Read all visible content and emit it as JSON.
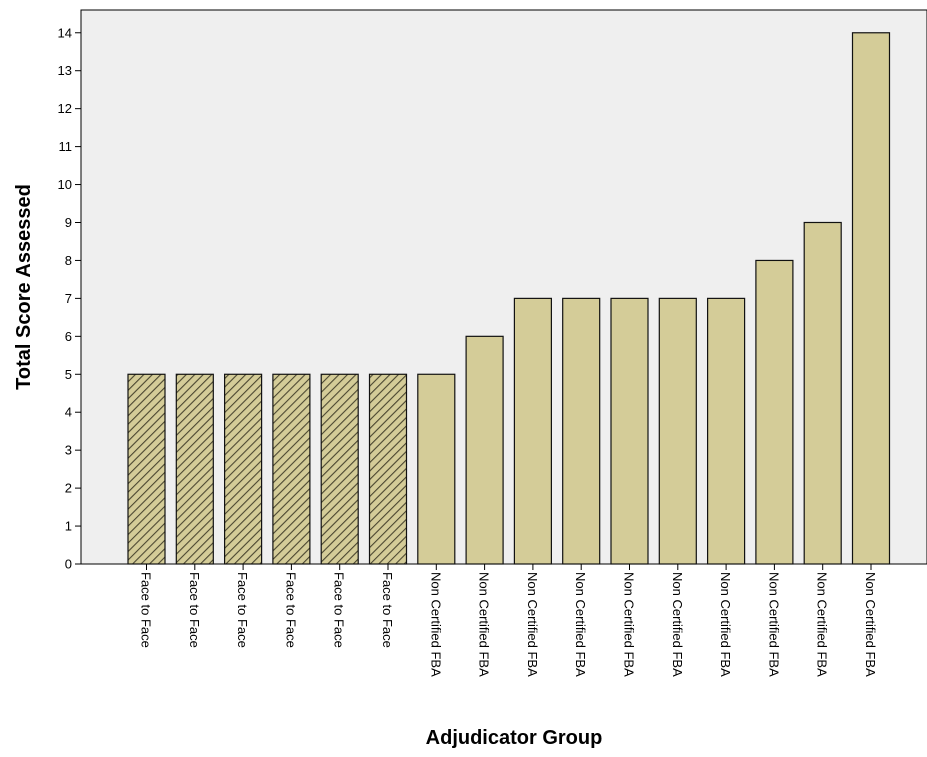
{
  "colors": {
    "plot_background": "#efefef",
    "bar_fill": "#d4cc98",
    "hatch_fill": "#d4cc98",
    "hatch_stroke": "#4a4630",
    "bar_stroke": "#111111"
  },
  "chart_data": {
    "type": "bar",
    "title": "",
    "xlabel": "Adjudicator Group",
    "ylabel": "Total Score Assessed",
    "ylim": [
      0,
      14.6
    ],
    "yticks": [
      0,
      1,
      2,
      3,
      4,
      5,
      6,
      7,
      8,
      9,
      10,
      11,
      12,
      13,
      14
    ],
    "grid": false,
    "legend": "none",
    "categories": [
      "Face to Face",
      "Face to Face",
      "Face to Face",
      "Face to Face",
      "Face to Face",
      "Face to Face",
      "Non Certified FBA",
      "Non Certified FBA",
      "Non Certified FBA",
      "Non Certified FBA",
      "Non Certified FBA",
      "Non Certified FBA",
      "Non Certified FBA",
      "Non Certified FBA",
      "Non Certified FBA",
      "Non Certified FBA"
    ],
    "values": [
      5,
      5,
      5,
      5,
      5,
      5,
      5,
      6,
      7,
      7,
      7,
      7,
      7,
      8,
      9,
      14
    ],
    "pattern": [
      "hatched",
      "hatched",
      "hatched",
      "hatched",
      "hatched",
      "hatched",
      "solid",
      "solid",
      "solid",
      "solid",
      "solid",
      "solid",
      "solid",
      "solid",
      "solid",
      "solid"
    ]
  }
}
